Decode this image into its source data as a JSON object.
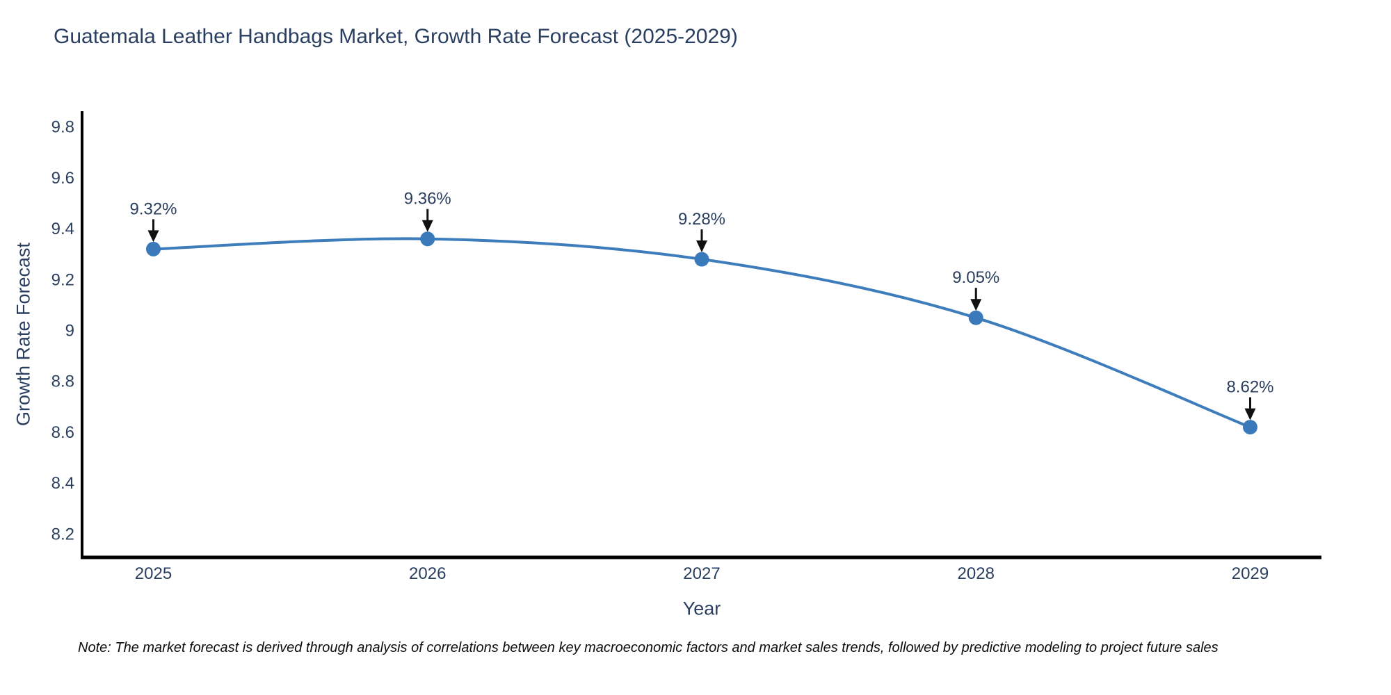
{
  "title": "Guatemala Leather Handbags Market, Growth Rate Forecast (2025-2029)",
  "note": "Note: The market forecast is derived through analysis of correlations between key macroeconomic factors and market sales trends, followed by predictive modeling to project future sales",
  "chart_data": {
    "type": "line",
    "title": "Guatemala Leather Handbags Market, Growth Rate Forecast (2025-2029)",
    "xlabel": "Year",
    "ylabel": "Growth Rate Forecast",
    "x": [
      2025,
      2026,
      2027,
      2028,
      2029
    ],
    "values": [
      9.32,
      9.36,
      9.28,
      9.05,
      8.62
    ],
    "point_labels": [
      "9.32%",
      "9.36%",
      "9.28%",
      "9.05%",
      "8.62%"
    ],
    "xtick_labels": [
      "2025",
      "2026",
      "2027",
      "2028",
      "2029"
    ],
    "ytick_values": [
      8.2,
      8.4,
      8.6,
      8.8,
      9,
      9.2,
      9.4,
      9.6,
      9.8
    ],
    "ytick_labels": [
      "8.2",
      "8.4",
      "8.6",
      "8.8",
      "9",
      "9.2",
      "9.4",
      "9.6",
      "9.8"
    ],
    "xlim": [
      2024.74,
      2029.26
    ],
    "ylim": [
      8.108,
      9.862
    ],
    "grid": false,
    "legend": false,
    "line_shape": "spline",
    "line_color": "#3e7dbc",
    "marker_color": "#3a7abb",
    "marker_size": 10.5,
    "axis_color": "#000000",
    "arrow_color": "#111111",
    "annotations_have_arrows": true
  }
}
